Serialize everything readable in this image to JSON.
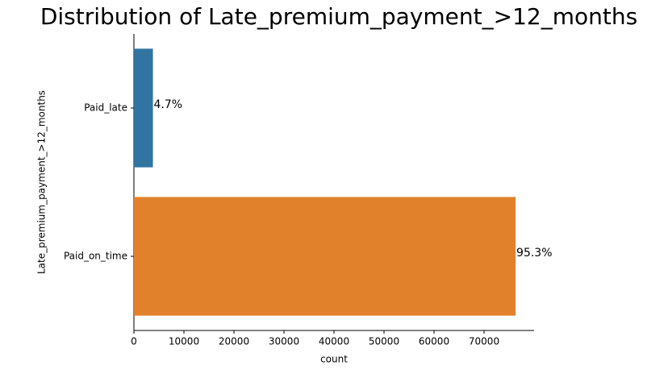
{
  "chart_data": {
    "type": "barh",
    "title": "Distribution of Late_premium_payment_>12_months",
    "categories": [
      "Paid_late",
      "Paid_on_time"
    ],
    "values": [
      3800,
      76300
    ],
    "value_labels": [
      "4.7%",
      "95.3%"
    ],
    "colors": [
      "#3274a1",
      "#e1812c"
    ],
    "xlabel": "count",
    "ylabel": "Late_premium_payment_>12_months",
    "xlim": [
      0,
      80000
    ],
    "xticks": [
      0,
      10000,
      20000,
      30000,
      40000,
      50000,
      60000,
      70000
    ]
  }
}
